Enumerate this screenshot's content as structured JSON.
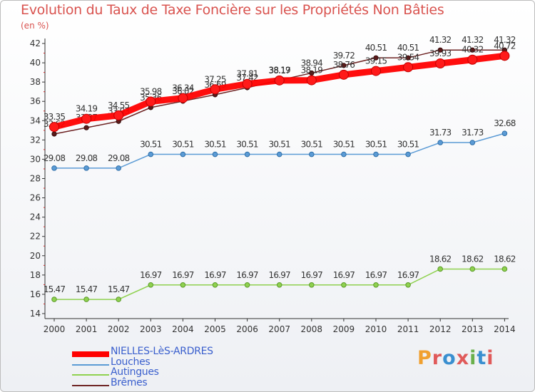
{
  "chart_data": {
    "type": "line",
    "title": "Evolution du Taux de Taxe Foncière sur les Propriétés Non Bâties",
    "unit_label": "(en %)",
    "x": [
      "2000",
      "2001",
      "2002",
      "2003",
      "2004",
      "2005",
      "2006",
      "2007",
      "2008",
      "2009",
      "2010",
      "2011",
      "2012",
      "2013",
      "2014"
    ],
    "ylim": [
      14,
      42
    ],
    "yticks": [
      14,
      16,
      18,
      20,
      22,
      24,
      26,
      28,
      30,
      32,
      34,
      36,
      38,
      40,
      42
    ],
    "grid": false,
    "legend_position": "bottom-left",
    "series": [
      {
        "name": "NIELLES-LèS-ARDRES",
        "color": "#ff0000",
        "values": [
          33.35,
          34.19,
          34.55,
          35.98,
          36.34,
          37.25,
          37.81,
          38.17,
          38.19,
          38.76,
          39.15,
          39.54,
          39.93,
          40.32,
          40.72
        ]
      },
      {
        "name": "Louches",
        "color": "#5b9bd5",
        "values": [
          29.08,
          29.08,
          29.08,
          30.51,
          30.51,
          30.51,
          30.51,
          30.51,
          30.51,
          30.51,
          30.51,
          30.51,
          31.73,
          31.73,
          32.68
        ]
      },
      {
        "name": "Autingues",
        "color": "#8fd14f",
        "values": [
          15.47,
          15.47,
          15.47,
          16.97,
          16.97,
          16.97,
          16.97,
          16.97,
          16.97,
          16.97,
          16.97,
          16.97,
          18.62,
          18.62,
          18.62
        ]
      },
      {
        "name": "Brêmes",
        "color": "#6e2424",
        "values": [
          32.62,
          33.27,
          33.93,
          35.36,
          36.02,
          36.69,
          37.42,
          38.19,
          38.94,
          39.72,
          40.51,
          40.51,
          41.32,
          41.32,
          41.32
        ]
      }
    ]
  },
  "logo": {
    "text": "Proxiti",
    "colors": [
      "#f0a030",
      "#e05a5a",
      "#3a8fd0",
      "#e05a5a",
      "#6ab04c",
      "#3a8fd0",
      "#e05a5a"
    ]
  }
}
